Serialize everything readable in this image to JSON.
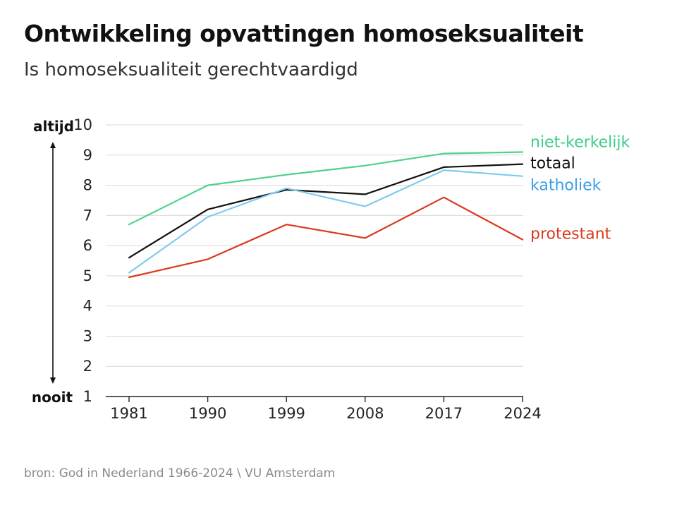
{
  "title": "Ontwikkeling opvattingen homoseksualiteit",
  "subtitle": "Is homoseksualiteit gerechtvaardigd",
  "source": "bron: God in Nederland 1966-2024 \\ VU Amsterdam",
  "chart_data": {
    "type": "line",
    "title": "Ontwikkeling opvattingen homoseksualiteit",
    "subtitle": "Is homoseksualiteit gerechtvaardigd",
    "xlabel": "",
    "ylabel": "",
    "ylim": [
      1,
      10
    ],
    "yticks": [
      1,
      2,
      3,
      4,
      5,
      6,
      7,
      8,
      9,
      10
    ],
    "y_axis_top_label": "altijd",
    "y_axis_bottom_label": "nooit",
    "grid": true,
    "legend": "right, inline labels at line ends",
    "categories": [
      "1981",
      "1990",
      "1999",
      "2008",
      "2017",
      "2024"
    ],
    "series": [
      {
        "name": "niet-kerkelijk",
        "color": "#4fd18e",
        "values": [
          6.7,
          8.0,
          8.35,
          8.65,
          9.05,
          9.1
        ]
      },
      {
        "name": "totaal",
        "color": "#111111",
        "values": [
          5.6,
          7.2,
          7.85,
          7.7,
          8.6,
          8.7
        ]
      },
      {
        "name": "katholiek",
        "color": "#7fcaf0",
        "values": [
          5.1,
          6.95,
          7.9,
          7.3,
          8.5,
          8.3
        ]
      },
      {
        "name": "protestant",
        "color": "#d93a1c",
        "values": [
          4.95,
          5.55,
          6.7,
          6.25,
          7.6,
          6.2
        ]
      }
    ],
    "label_colors": {
      "niet-kerkelijk": "#3dcc88",
      "totaal": "#111111",
      "katholiek": "#3a9ee8",
      "protestant": "#d93a1c"
    }
  }
}
